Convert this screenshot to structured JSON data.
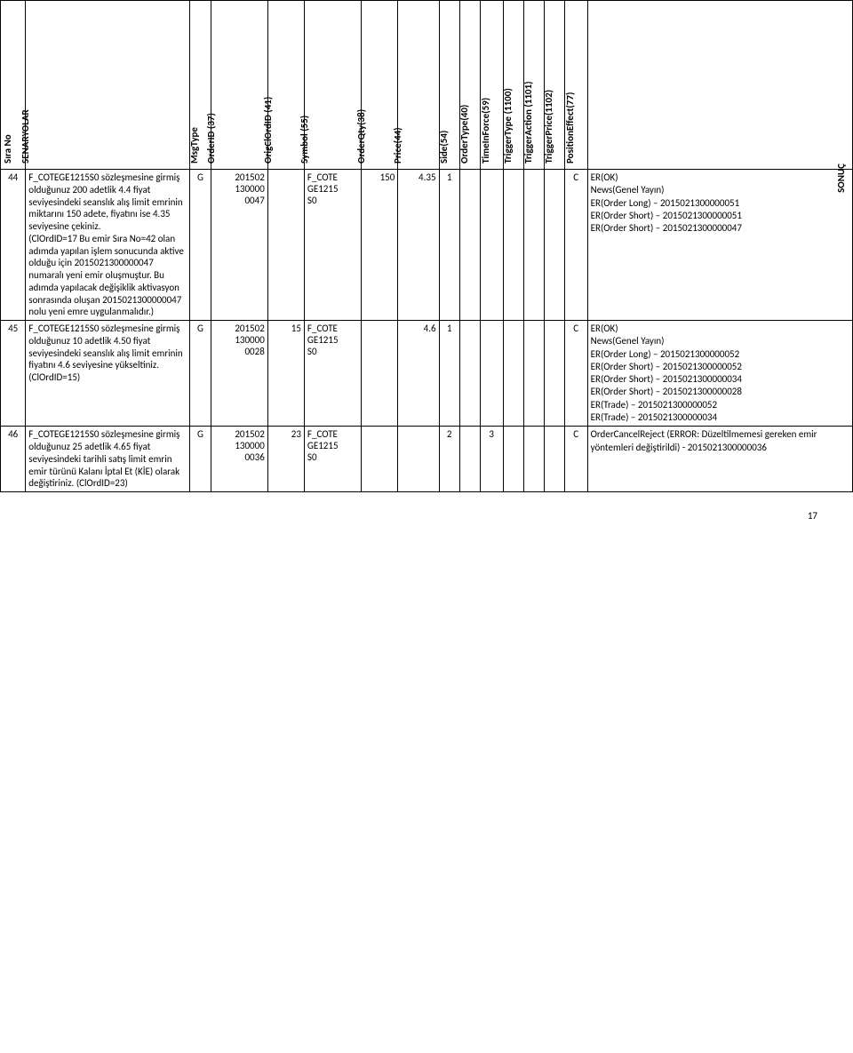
{
  "page_number": "17",
  "headers": {
    "sira_no": "Sıra No",
    "senaryolar": "SENARYOLAR",
    "msgtype": "MsgType",
    "orderid": "OrderID (37)",
    "origclordid": "OrigClOrdID (41)",
    "symbol": "Symbol (55)",
    "orderqty": "OrderQty(38)",
    "price": "Price(44)",
    "side": "Side(54)",
    "ordertype": "OrderType(40)",
    "timeinforce": "TimeInForce(59)",
    "triggertype": "TriggerType (1100)",
    "triggeraction": "TriggerAction (1101)",
    "triggerprice": "TriggerPrice(1102)",
    "positioneffect": "PositionEffect(77)",
    "sonuc": "SONUÇ"
  },
  "rows": [
    {
      "sira_no": "44",
      "scenario": "F_COTEGE1215S0 sözleşmesine girmiş olduğunuz 200 adetlik 4.4 fiyat seviyesindeki seanslık alış limit emrinin miktarını 150 adete, fiyatını ise 4.35 seviyesine çekiniz.\n(ClOrdID=17 Bu emir Sıra No=42 olan adımda yapılan işlem sonucunda aktive olduğu için 2015021300000047 numaralı yeni emir oluşmuştur. Bu adımda yapılacak değişiklik aktivasyon sonrasında oluşan 2015021300000047 nolu yeni emre uygulanmalıdır.)",
      "msgtype": "G",
      "orderid": "201502\n130000\n0047",
      "origclordid": "",
      "symbol": "F_COTE\nGE1215\nS0",
      "orderqty": "150",
      "price": "4.35",
      "side": "1",
      "ordertype": "",
      "timeinforce": "",
      "triggertype": "",
      "triggeraction": "",
      "triggerprice": "",
      "positioneffect": "C",
      "result": "ER(OK)\nNews(Genel Yayın)\nER(Order Long) – 2015021300000051\nER(Order Short) – 2015021300000051\nER(Order Short) – 2015021300000047"
    },
    {
      "sira_no": "45",
      "scenario": "F_COTEGE1215S0 sözleşmesine girmiş olduğunuz 10 adetlik 4.50 fiyat seviyesindeki seanslık alış limit emrinin fiyatını 4.6 seviyesine yükseltiniz. (ClOrdID=15)",
      "msgtype": "G",
      "orderid": "201502\n130000\n0028",
      "origclordid": "15",
      "symbol": "F_COTE\nGE1215\nS0",
      "orderqty": "",
      "price": "4.6",
      "side": "1",
      "ordertype": "",
      "timeinforce": "",
      "triggertype": "",
      "triggeraction": "",
      "triggerprice": "",
      "positioneffect": "C",
      "result": "ER(OK)\nNews(Genel Yayın)\nER(Order Long) – 2015021300000052\nER(Order Short) – 2015021300000052\nER(Order Short) – 2015021300000034\nER(Order Short) – 2015021300000028\nER(Trade) – 2015021300000052\nER(Trade) – 2015021300000034"
    },
    {
      "sira_no": "46",
      "scenario": "F_COTEGE1215S0 sözleşmesine girmiş olduğunuz 25 adetlik 4.65 fiyat seviyesindeki tarihli satış limit emrin emir türünü Kalanı İptal Et (KİE) olarak değiştiriniz. (ClOrdID=23)",
      "msgtype": "G",
      "orderid": "201502\n130000\n0036",
      "origclordid": "23",
      "symbol": "F_COTE\nGE1215\nS0",
      "orderqty": "",
      "price": "",
      "side": "2",
      "ordertype": "",
      "timeinforce": "3",
      "triggertype": "",
      "triggeraction": "",
      "triggerprice": "",
      "positioneffect": "C",
      "result": "OrderCancelReject (ERROR: Düzeltilmemesi gereken emir yöntemleri değiştirildi) - 2015021300000036"
    }
  ]
}
